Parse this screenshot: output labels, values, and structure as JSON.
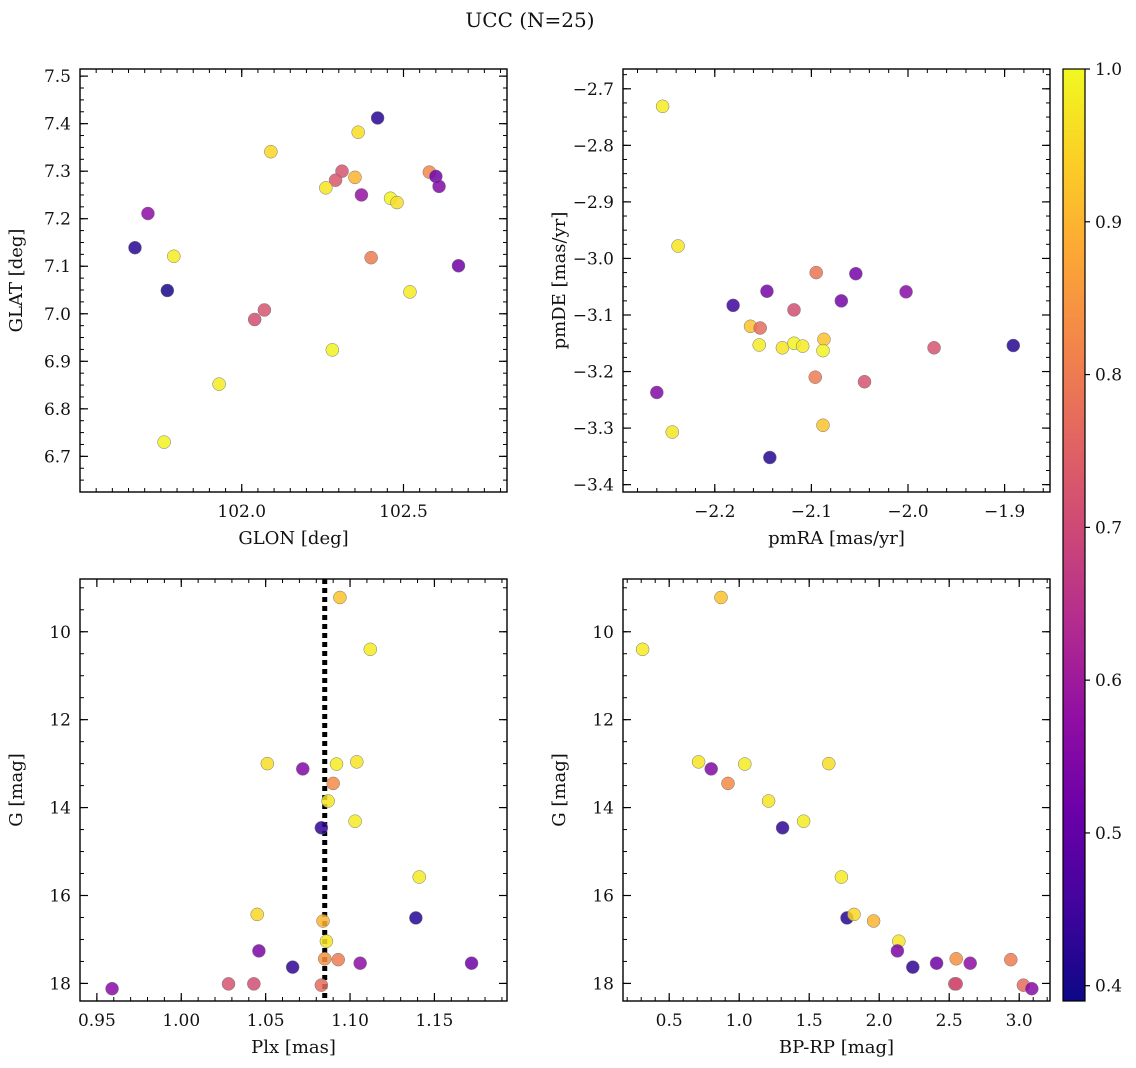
{
  "suptitle": "UCC (N=25)",
  "colorbar": {
    "range": [
      0.39,
      1.0
    ],
    "ticks": [
      0.4,
      0.5,
      0.6,
      0.7,
      0.8,
      0.9,
      1.0
    ],
    "tick_labels": [
      "0.4",
      "0.5",
      "0.6",
      "0.7",
      "0.8",
      "0.9",
      "1.0"
    ],
    "colormap": "plasma"
  },
  "chart_data": [
    {
      "type": "scatter",
      "id": "glon-glat",
      "xlabel": "GLON [deg]",
      "ylabel": "GLAT [deg]",
      "xlim": [
        101.5,
        102.82
      ],
      "ylim": [
        6.625,
        7.515
      ],
      "y_inverted": false,
      "xticks": [
        102.0,
        102.5
      ],
      "xtick_labels": [
        "102.0",
        "102.5"
      ],
      "xminor": 0.05,
      "yticks": [
        6.7,
        6.8,
        6.9,
        7.0,
        7.1,
        7.2,
        7.3,
        7.4,
        7.5
      ],
      "ytick_labels": [
        "6.7",
        "6.8",
        "6.9",
        "7.0",
        "7.1",
        "7.2",
        "7.3",
        "7.4",
        "7.5"
      ],
      "yminor": 0.025,
      "points": [
        {
          "x": 102.42,
          "y": 7.412,
          "c": 0.42
        },
        {
          "x": 102.36,
          "y": 7.382,
          "c": 0.96
        },
        {
          "x": 102.09,
          "y": 7.341,
          "c": 0.95
        },
        {
          "x": 102.31,
          "y": 7.3,
          "c": 0.72
        },
        {
          "x": 102.29,
          "y": 7.281,
          "c": 0.73
        },
        {
          "x": 102.35,
          "y": 7.287,
          "c": 0.9
        },
        {
          "x": 102.26,
          "y": 7.265,
          "c": 0.97
        },
        {
          "x": 102.37,
          "y": 7.25,
          "c": 0.58
        },
        {
          "x": 102.46,
          "y": 7.243,
          "c": 0.99
        },
        {
          "x": 102.48,
          "y": 7.234,
          "c": 0.96
        },
        {
          "x": 102.58,
          "y": 7.298,
          "c": 0.82
        },
        {
          "x": 102.6,
          "y": 7.289,
          "c": 0.52
        },
        {
          "x": 102.61,
          "y": 7.268,
          "c": 0.55
        },
        {
          "x": 101.71,
          "y": 7.211,
          "c": 0.57
        },
        {
          "x": 101.79,
          "y": 7.121,
          "c": 0.98
        },
        {
          "x": 101.67,
          "y": 7.139,
          "c": 0.42
        },
        {
          "x": 102.4,
          "y": 7.118,
          "c": 0.8
        },
        {
          "x": 102.67,
          "y": 7.101,
          "c": 0.52
        },
        {
          "x": 101.77,
          "y": 7.049,
          "c": 0.4
        },
        {
          "x": 102.52,
          "y": 7.046,
          "c": 0.98
        },
        {
          "x": 102.07,
          "y": 7.008,
          "c": 0.72
        },
        {
          "x": 102.04,
          "y": 6.988,
          "c": 0.71
        },
        {
          "x": 102.28,
          "y": 6.924,
          "c": 0.99
        },
        {
          "x": 101.93,
          "y": 6.852,
          "c": 0.98
        },
        {
          "x": 101.76,
          "y": 6.73,
          "c": 0.99
        }
      ]
    },
    {
      "type": "scatter",
      "id": "pmra-pmde",
      "xlabel": "pmRA [mas/yr]",
      "ylabel": "pmDE [mas/yr]",
      "xlim": [
        -2.295,
        -1.853
      ],
      "ylim": [
        -3.413,
        -2.665
      ],
      "y_inverted": false,
      "xticks": [
        -2.2,
        -2.1,
        -2.0,
        -1.9
      ],
      "xtick_labels": [
        "−2.2",
        "−2.1",
        "−2.0",
        "−1.9"
      ],
      "xminor": 0.02,
      "yticks": [
        -3.4,
        -3.3,
        -3.2,
        -3.1,
        -3.0,
        -2.9,
        -2.8,
        -2.7
      ],
      "ytick_labels": [
        "−3.4",
        "−3.3",
        "−3.2",
        "−3.1",
        "−3.0",
        "−2.9",
        "−2.8",
        "−2.7"
      ],
      "yminor": 0.025,
      "points": [
        {
          "x": -2.254,
          "y": -2.731,
          "c": 0.98
        },
        {
          "x": -2.238,
          "y": -2.978,
          "c": 0.97
        },
        {
          "x": -2.095,
          "y": -3.025,
          "c": 0.79
        },
        {
          "x": -2.054,
          "y": -3.027,
          "c": 0.53
        },
        {
          "x": -2.002,
          "y": -3.059,
          "c": 0.56
        },
        {
          "x": -2.146,
          "y": -3.058,
          "c": 0.53
        },
        {
          "x": -2.181,
          "y": -3.083,
          "c": 0.45
        },
        {
          "x": -2.069,
          "y": -3.075,
          "c": 0.53
        },
        {
          "x": -2.118,
          "y": -3.091,
          "c": 0.71
        },
        {
          "x": -2.163,
          "y": -3.12,
          "c": 0.92
        },
        {
          "x": -2.153,
          "y": -3.123,
          "c": 0.77
        },
        {
          "x": -2.087,
          "y": -3.143,
          "c": 0.92
        },
        {
          "x": -2.154,
          "y": -3.153,
          "c": 0.98
        },
        {
          "x": -2.13,
          "y": -3.158,
          "c": 0.97
        },
        {
          "x": -2.118,
          "y": -3.15,
          "c": 0.99
        },
        {
          "x": -2.109,
          "y": -3.155,
          "c": 0.98
        },
        {
          "x": -2.088,
          "y": -3.163,
          "c": 0.99
        },
        {
          "x": -1.973,
          "y": -3.158,
          "c": 0.72
        },
        {
          "x": -1.891,
          "y": -3.154,
          "c": 0.42
        },
        {
          "x": -2.096,
          "y": -3.21,
          "c": 0.8
        },
        {
          "x": -2.045,
          "y": -3.218,
          "c": 0.72
        },
        {
          "x": -2.26,
          "y": -3.237,
          "c": 0.55
        },
        {
          "x": -2.088,
          "y": -3.295,
          "c": 0.92
        },
        {
          "x": -2.244,
          "y": -3.307,
          "c": 0.97
        },
        {
          "x": -2.143,
          "y": -3.352,
          "c": 0.42
        }
      ]
    },
    {
      "type": "scatter",
      "id": "plx-g",
      "xlabel": "Plx [mas]",
      "ylabel": "G [mag]",
      "xlim": [
        0.94,
        1.193
      ],
      "ylim": [
        8.8,
        18.4
      ],
      "y_inverted": true,
      "xticks": [
        0.95,
        1.0,
        1.05,
        1.1,
        1.15
      ],
      "xtick_labels": [
        "0.95",
        "1.00",
        "1.05",
        "1.10",
        "1.15"
      ],
      "xminor": 0.01,
      "yticks": [
        10,
        12,
        14,
        16,
        18
      ],
      "ytick_labels": [
        "10",
        "12",
        "14",
        "16",
        "18"
      ],
      "yminor": 0.5,
      "vline": {
        "x": 1.085,
        "style": "dotted",
        "color": "#000000"
      },
      "points": [
        {
          "x": 1.094,
          "y": 9.22,
          "c": 0.92
        },
        {
          "x": 1.112,
          "y": 10.4,
          "c": 0.98
        },
        {
          "x": 1.051,
          "y": 13.0,
          "c": 0.96
        },
        {
          "x": 1.072,
          "y": 13.12,
          "c": 0.55
        },
        {
          "x": 1.092,
          "y": 13.01,
          "c": 0.98
        },
        {
          "x": 1.104,
          "y": 12.96,
          "c": 0.97
        },
        {
          "x": 1.09,
          "y": 13.45,
          "c": 0.83
        },
        {
          "x": 1.087,
          "y": 13.85,
          "c": 0.97
        },
        {
          "x": 1.103,
          "y": 14.31,
          "c": 0.98
        },
        {
          "x": 1.083,
          "y": 14.46,
          "c": 0.43
        },
        {
          "x": 1.141,
          "y": 15.58,
          "c": 0.98
        },
        {
          "x": 1.045,
          "y": 16.43,
          "c": 0.95
        },
        {
          "x": 1.139,
          "y": 16.51,
          "c": 0.42
        },
        {
          "x": 1.084,
          "y": 16.58,
          "c": 0.9
        },
        {
          "x": 1.086,
          "y": 17.04,
          "c": 0.97
        },
        {
          "x": 1.046,
          "y": 17.26,
          "c": 0.54
        },
        {
          "x": 1.085,
          "y": 17.44,
          "c": 0.84
        },
        {
          "x": 1.093,
          "y": 17.46,
          "c": 0.8
        },
        {
          "x": 1.106,
          "y": 17.54,
          "c": 0.57
        },
        {
          "x": 1.172,
          "y": 17.54,
          "c": 0.52
        },
        {
          "x": 1.066,
          "y": 17.63,
          "c": 0.43
        },
        {
          "x": 1.028,
          "y": 18.01,
          "c": 0.72
        },
        {
          "x": 1.043,
          "y": 18.01,
          "c": 0.71
        },
        {
          "x": 1.083,
          "y": 18.04,
          "c": 0.77
        },
        {
          "x": 0.959,
          "y": 18.12,
          "c": 0.56
        }
      ]
    },
    {
      "type": "scatter",
      "id": "bprp-g",
      "xlabel": "BP-RP [mag]",
      "ylabel": "G [mag]",
      "xlim": [
        0.17,
        3.22
      ],
      "ylim": [
        8.8,
        18.4
      ],
      "y_inverted": true,
      "xticks": [
        0.5,
        1.0,
        1.5,
        2.0,
        2.5,
        3.0
      ],
      "xtick_labels": [
        "0.5",
        "1.0",
        "1.5",
        "2.0",
        "2.5",
        "3.0"
      ],
      "xminor": 0.1,
      "yticks": [
        10,
        12,
        14,
        16,
        18
      ],
      "ytick_labels": [
        "10",
        "12",
        "14",
        "16",
        "18"
      ],
      "yminor": 0.5,
      "points": [
        {
          "x": 0.87,
          "y": 9.22,
          "c": 0.92
        },
        {
          "x": 0.31,
          "y": 10.4,
          "c": 0.98
        },
        {
          "x": 0.71,
          "y": 12.96,
          "c": 0.97
        },
        {
          "x": 0.8,
          "y": 13.12,
          "c": 0.55
        },
        {
          "x": 0.92,
          "y": 13.45,
          "c": 0.83
        },
        {
          "x": 1.04,
          "y": 13.01,
          "c": 0.98
        },
        {
          "x": 1.64,
          "y": 13.0,
          "c": 0.96
        },
        {
          "x": 1.21,
          "y": 13.85,
          "c": 0.97
        },
        {
          "x": 1.31,
          "y": 14.46,
          "c": 0.43
        },
        {
          "x": 1.46,
          "y": 14.31,
          "c": 0.98
        },
        {
          "x": 1.73,
          "y": 15.58,
          "c": 0.98
        },
        {
          "x": 1.77,
          "y": 16.51,
          "c": 0.42
        },
        {
          "x": 1.82,
          "y": 16.43,
          "c": 0.95
        },
        {
          "x": 1.96,
          "y": 16.58,
          "c": 0.9
        },
        {
          "x": 2.14,
          "y": 17.04,
          "c": 0.97
        },
        {
          "x": 2.13,
          "y": 17.26,
          "c": 0.54
        },
        {
          "x": 2.24,
          "y": 17.63,
          "c": 0.43
        },
        {
          "x": 2.41,
          "y": 17.54,
          "c": 0.52
        },
        {
          "x": 2.55,
          "y": 17.44,
          "c": 0.84
        },
        {
          "x": 2.65,
          "y": 17.54,
          "c": 0.57
        },
        {
          "x": 2.54,
          "y": 18.01,
          "c": 0.72
        },
        {
          "x": 2.55,
          "y": 18.01,
          "c": 0.71
        },
        {
          "x": 2.94,
          "y": 17.46,
          "c": 0.8
        },
        {
          "x": 3.03,
          "y": 18.04,
          "c": 0.77
        },
        {
          "x": 3.09,
          "y": 18.12,
          "c": 0.56
        }
      ]
    }
  ]
}
